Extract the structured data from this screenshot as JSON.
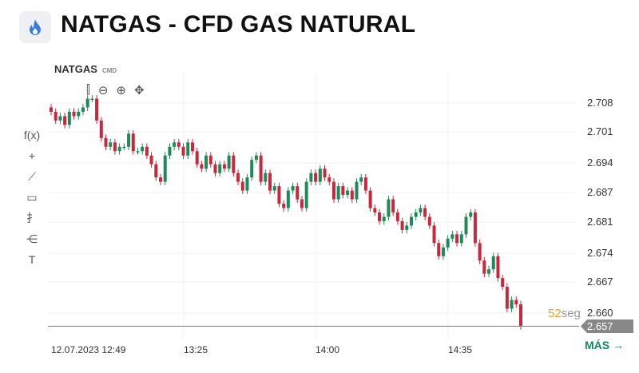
{
  "header": {
    "title": "NATGAS - CFD GAS NATURAL",
    "icon": "flame-icon",
    "icon_color": "#3b7be0"
  },
  "chart": {
    "symbol": "NATGAS",
    "symbol_type": "CMD",
    "timer_value": "52",
    "timer_unit": "seg",
    "current_price": "2.657",
    "more_label": "MÁS →"
  },
  "toolbar": [
    "f(x)",
    "+",
    "⟋",
    "▭",
    "⺘",
    "⋲",
    "T"
  ],
  "colors": {
    "up": "#1e8a5a",
    "down": "#c8283c"
  },
  "chart_data": {
    "type": "candlestick",
    "y_ticks": [
      "2.708",
      "2.701",
      "2.694",
      "2.687",
      "2.681",
      "2.674",
      "2.667",
      "2.660"
    ],
    "x_ticks": [
      "12.07.2023 12:49",
      "13:25",
      "14:00",
      "14:35"
    ],
    "ylim": [
      2.653,
      2.711
    ],
    "last_price": 2.657,
    "closes": [
      2.706,
      2.704,
      2.705,
      2.703,
      2.706,
      2.705,
      2.706,
      2.707,
      2.709,
      2.709,
      2.704,
      2.7,
      2.698,
      2.699,
      2.697,
      2.698,
      2.698,
      2.701,
      2.697,
      2.697,
      2.698,
      2.696,
      2.694,
      2.691,
      2.69,
      2.696,
      2.698,
      2.699,
      2.698,
      2.696,
      2.699,
      2.697,
      2.694,
      2.693,
      2.696,
      2.694,
      2.692,
      2.694,
      2.693,
      2.696,
      2.692,
      2.69,
      2.688,
      2.691,
      2.695,
      2.696,
      2.69,
      2.692,
      2.688,
      2.689,
      2.685,
      2.684,
      2.688,
      2.689,
      2.686,
      2.684,
      2.69,
      2.692,
      2.69,
      2.693,
      2.691,
      2.69,
      2.686,
      2.689,
      2.687,
      2.688,
      2.686,
      2.69,
      2.691,
      2.688,
      2.684,
      2.683,
      2.681,
      2.682,
      2.686,
      2.683,
      2.681,
      2.679,
      2.68,
      2.682,
      2.683,
      2.684,
      2.682,
      2.68,
      2.676,
      2.673,
      2.675,
      2.677,
      2.678,
      2.676,
      2.678,
      2.682,
      2.683,
      2.676,
      2.672,
      2.669,
      2.67,
      2.673,
      2.668,
      2.666,
      2.661,
      2.663,
      2.662,
      2.657
    ]
  }
}
